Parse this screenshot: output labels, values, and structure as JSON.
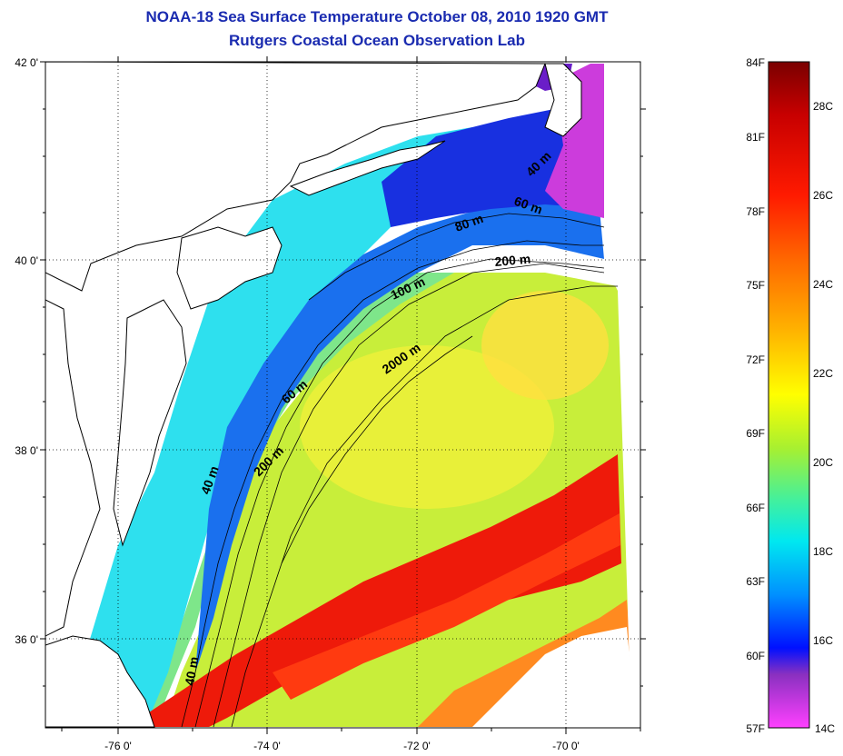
{
  "title_line1": "NOAA-18 Sea Surface Temperature October 08, 2010 1920 GMT",
  "title_line2": "Rutgers Coastal Ocean Observation Lab",
  "map": {
    "lat_ticks": [
      "42 0'",
      "40 0'",
      "38 0'",
      "36 0'"
    ],
    "lon_ticks": [
      "-76 0'",
      "-74 0'",
      "-72 0'",
      "-70 0'"
    ],
    "contour_labels": [
      "40 m",
      "60 m",
      "80 m",
      "200 m",
      "100 m",
      "2000 m",
      "60 m",
      "40 m",
      "200 m",
      "40 m"
    ]
  },
  "colorbar": {
    "f_labels": [
      "84F",
      "81F",
      "78F",
      "75F",
      "72F",
      "69F",
      "66F",
      "63F",
      "60F",
      "57F"
    ],
    "c_labels": [
      "28C",
      "26C",
      "24C",
      "22C",
      "20C",
      "18C",
      "16C",
      "14C"
    ],
    "colors": [
      "#7a0000",
      "#c80000",
      "#ff1a00",
      "#ff6a00",
      "#ffb000",
      "#ffff00",
      "#a8f030",
      "#40f0a0",
      "#00e8f0",
      "#0090ff",
      "#0010ff",
      "#8a30c0",
      "#ff40ff"
    ]
  }
}
